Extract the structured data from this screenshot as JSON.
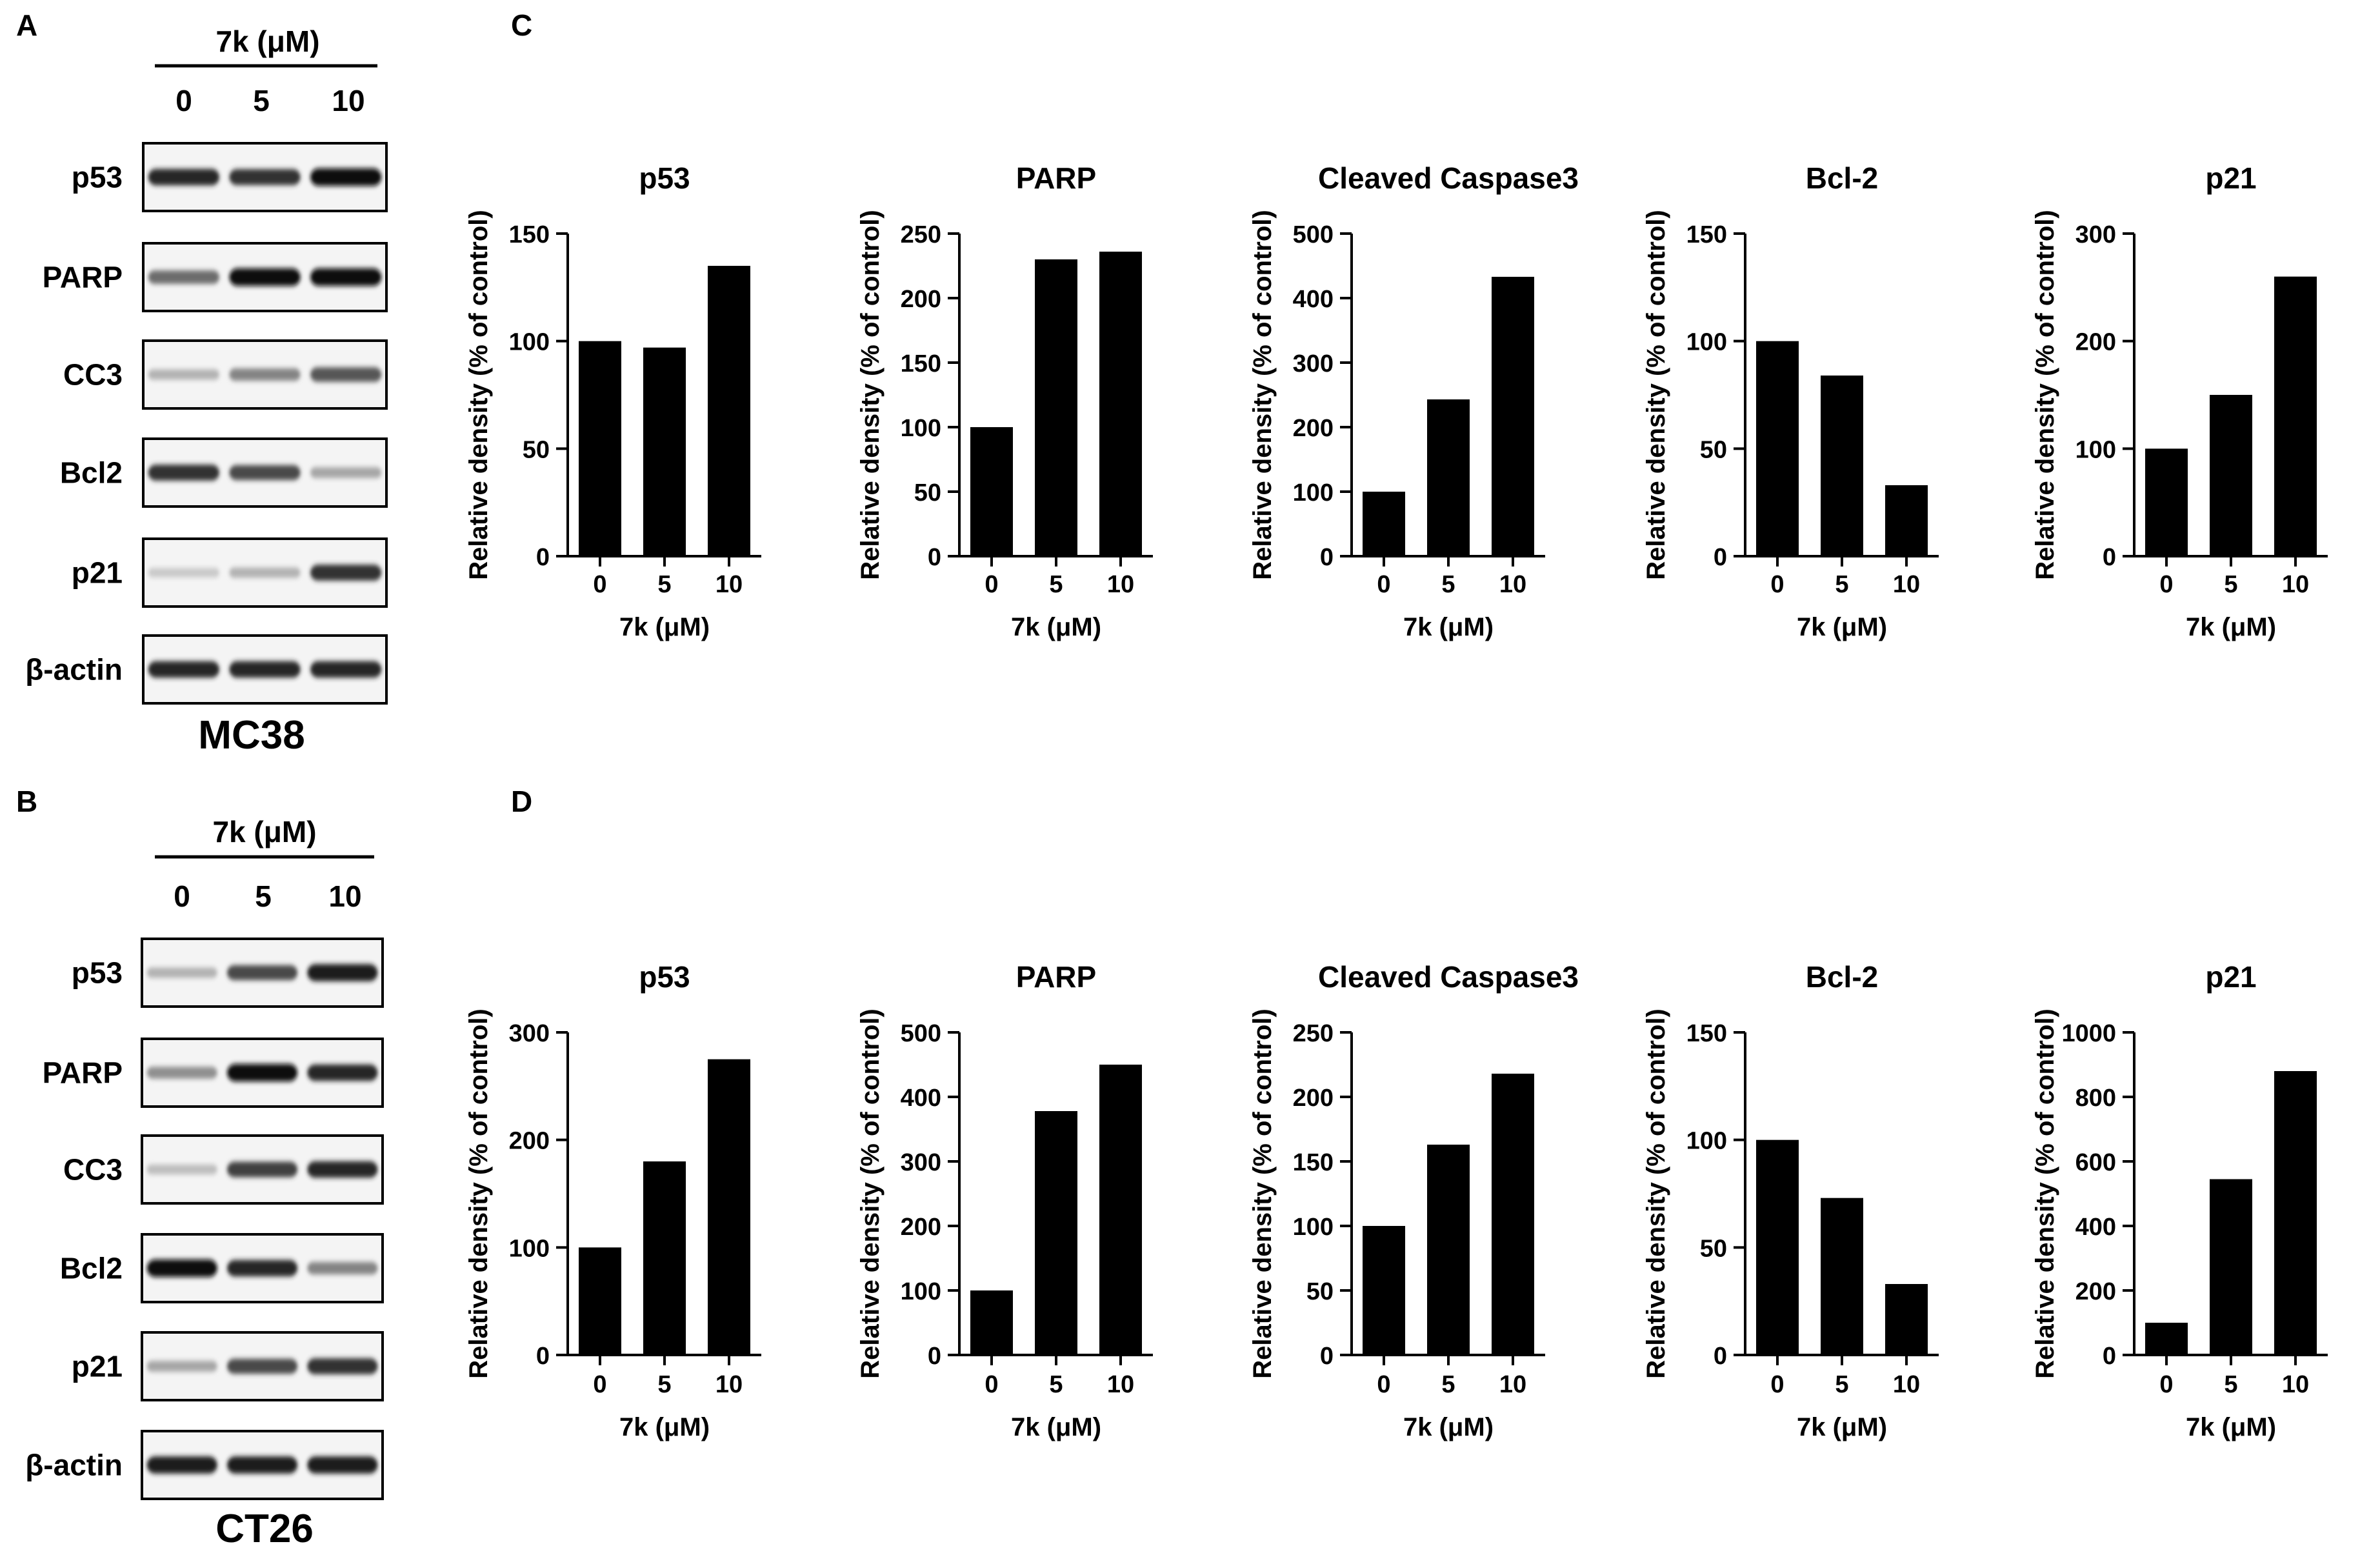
{
  "panels": {
    "A": {
      "letter": "A",
      "header": "7k (μM)",
      "doses": [
        "0",
        "5",
        "10"
      ],
      "proteins": [
        "p53",
        "PARP",
        "CC3",
        "Bcl2",
        "p21",
        "β-actin"
      ],
      "cell_line": "MC38",
      "band_intensity": [
        [
          0.85,
          0.8,
          0.95
        ],
        [
          0.55,
          0.95,
          0.95
        ],
        [
          0.25,
          0.45,
          0.65
        ],
        [
          0.8,
          0.7,
          0.3
        ],
        [
          0.15,
          0.25,
          0.8
        ],
        [
          0.85,
          0.85,
          0.85
        ]
      ]
    },
    "B": {
      "letter": "B",
      "header": "7k (μM)",
      "doses": [
        "0",
        "5",
        "10"
      ],
      "proteins": [
        "p53",
        "PARP",
        "CC3",
        "Bcl2",
        "p21",
        "β-actin"
      ],
      "cell_line": "CT26",
      "band_intensity": [
        [
          0.25,
          0.7,
          0.9
        ],
        [
          0.4,
          0.95,
          0.85
        ],
        [
          0.2,
          0.75,
          0.85
        ],
        [
          0.95,
          0.85,
          0.45
        ],
        [
          0.3,
          0.7,
          0.8
        ],
        [
          0.9,
          0.9,
          0.9
        ]
      ]
    }
  },
  "chart_letters": [
    "C",
    "D"
  ],
  "chart_data": [
    {
      "type": "bar",
      "panel": "C",
      "title": "p53",
      "categories": [
        "0",
        "5",
        "10"
      ],
      "values": [
        100,
        97,
        135
      ],
      "xlabel": "7k (μM)",
      "ylabel": "Relative density (% of control)",
      "ylim": [
        0,
        150
      ],
      "yticks": [
        0,
        50,
        100,
        150
      ]
    },
    {
      "type": "bar",
      "panel": "C",
      "title": "PARP",
      "categories": [
        "0",
        "5",
        "10"
      ],
      "values": [
        100,
        230,
        236
      ],
      "xlabel": "7k (μM)",
      "ylabel": "Relative density (% of control)",
      "ylim": [
        0,
        250
      ],
      "yticks": [
        0,
        50,
        100,
        150,
        200,
        250
      ]
    },
    {
      "type": "bar",
      "panel": "C",
      "title": "Cleaved Caspase3",
      "categories": [
        "0",
        "5",
        "10"
      ],
      "values": [
        100,
        243,
        433
      ],
      "xlabel": "7k (μM)",
      "ylabel": "Relative density (% of control)",
      "ylim": [
        0,
        500
      ],
      "yticks": [
        0,
        100,
        200,
        300,
        400,
        500
      ]
    },
    {
      "type": "bar",
      "panel": "C",
      "title": "Bcl-2",
      "categories": [
        "0",
        "5",
        "10"
      ],
      "values": [
        100,
        84,
        33
      ],
      "xlabel": "7k (μM)",
      "ylabel": "Relative density (% of control)",
      "ylim": [
        0,
        150
      ],
      "yticks": [
        0,
        50,
        100,
        150
      ]
    },
    {
      "type": "bar",
      "panel": "C",
      "title": "p21",
      "categories": [
        "0",
        "5",
        "10"
      ],
      "values": [
        100,
        150,
        260
      ],
      "xlabel": "7k (μM)",
      "ylabel": "Relative density (% of control)",
      "ylim": [
        0,
        300
      ],
      "yticks": [
        0,
        100,
        200,
        300
      ]
    },
    {
      "type": "bar",
      "panel": "D",
      "title": "p53",
      "categories": [
        "0",
        "5",
        "10"
      ],
      "values": [
        100,
        180,
        275
      ],
      "xlabel": "7k (μM)",
      "ylabel": "Relative density (% of control)",
      "ylim": [
        0,
        300
      ],
      "yticks": [
        0,
        100,
        200,
        300
      ]
    },
    {
      "type": "bar",
      "panel": "D",
      "title": "PARP",
      "categories": [
        "0",
        "5",
        "10"
      ],
      "values": [
        100,
        378,
        450
      ],
      "xlabel": "7k (μM)",
      "ylabel": "Relative density (% of control)",
      "ylim": [
        0,
        500
      ],
      "yticks": [
        0,
        100,
        200,
        300,
        400,
        500
      ]
    },
    {
      "type": "bar",
      "panel": "D",
      "title": "Cleaved Caspase3",
      "categories": [
        "0",
        "5",
        "10"
      ],
      "values": [
        100,
        163,
        218
      ],
      "xlabel": "7k (μM)",
      "ylabel": "Relative density (% of control)",
      "ylim": [
        0,
        250
      ],
      "yticks": [
        0,
        50,
        100,
        150,
        200,
        250
      ]
    },
    {
      "type": "bar",
      "panel": "D",
      "title": "Bcl-2",
      "categories": [
        "0",
        "5",
        "10"
      ],
      "values": [
        100,
        73,
        33
      ],
      "xlabel": "7k (μM)",
      "ylabel": "Relative density (% of control)",
      "ylim": [
        0,
        150
      ],
      "yticks": [
        0,
        50,
        100,
        150
      ]
    },
    {
      "type": "bar",
      "panel": "D",
      "title": "p21",
      "categories": [
        "0",
        "5",
        "10"
      ],
      "values": [
        100,
        545,
        880
      ],
      "xlabel": "7k (μM)",
      "ylabel": "Relative density (% of control)",
      "ylim": [
        0,
        1000
      ],
      "yticks": [
        0,
        200,
        400,
        600,
        800,
        1000
      ]
    }
  ]
}
